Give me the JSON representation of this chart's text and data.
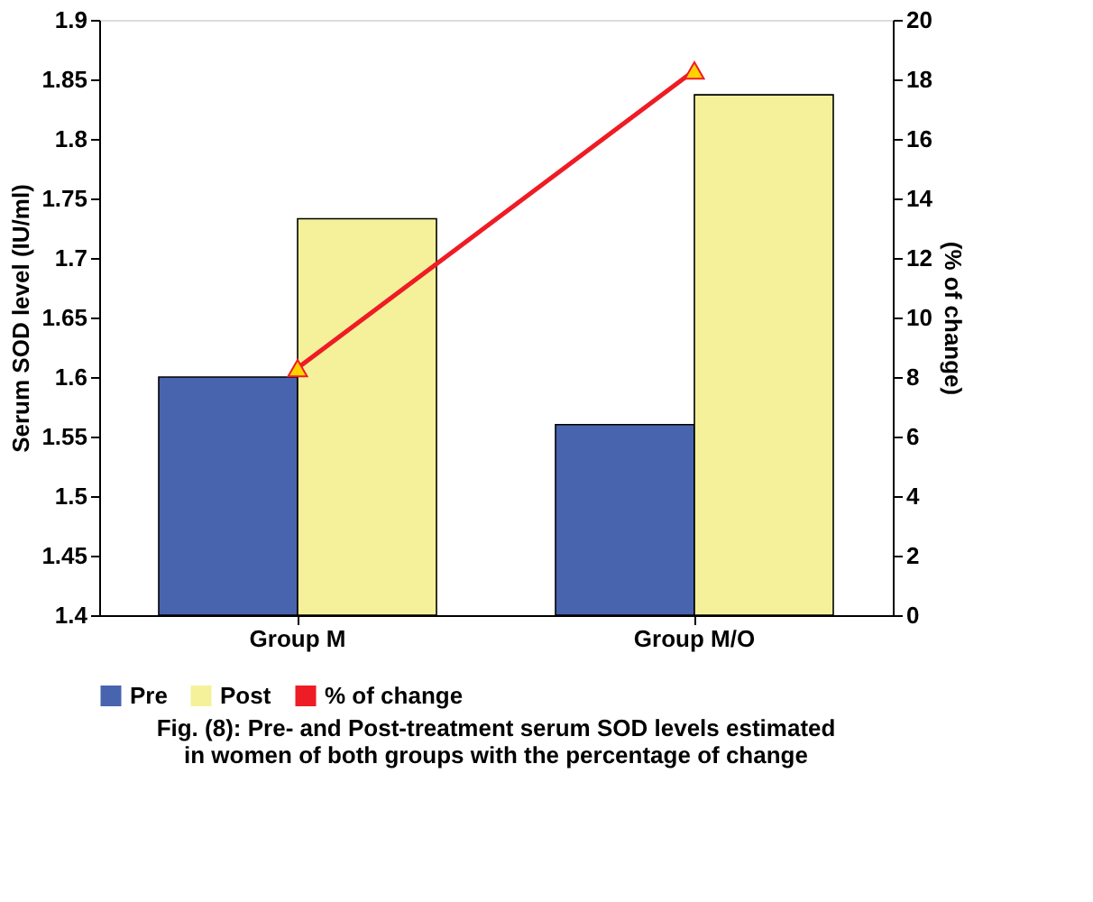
{
  "chart_data": {
    "type": "bar",
    "categories": [
      "Group M",
      "Group M/O"
    ],
    "ylabel": "Serum SOD level (IU/ml)",
    "y2label": "(% of change)",
    "series": [
      {
        "name": "Pre",
        "color": "#4864ae",
        "values": [
          1.6,
          1.56
        ]
      },
      {
        "name": "Post",
        "color": "#f5f19a",
        "values": [
          1.733,
          1.837
        ]
      },
      {
        "name": "% of change",
        "type": "line",
        "axis": "y2",
        "color": "#ee1c24",
        "marker": "triangle",
        "values": [
          8.3,
          18.3
        ]
      }
    ],
    "ylim": [
      1.4,
      1.9
    ],
    "yticks": [
      1.4,
      1.45,
      1.5,
      1.55,
      1.6,
      1.65,
      1.7,
      1.75,
      1.8,
      1.85,
      1.9
    ],
    "y2lim": [
      0,
      20
    ],
    "y2ticks": [
      0,
      2,
      4,
      6,
      8,
      10,
      12,
      14,
      16,
      18,
      20
    ],
    "grid": false,
    "legend": "bottom",
    "annotations": [
      "Fig. (8): Pre- and Post-treatment serum SOD levels estimated in women of both groups with the percentage of change"
    ]
  }
}
